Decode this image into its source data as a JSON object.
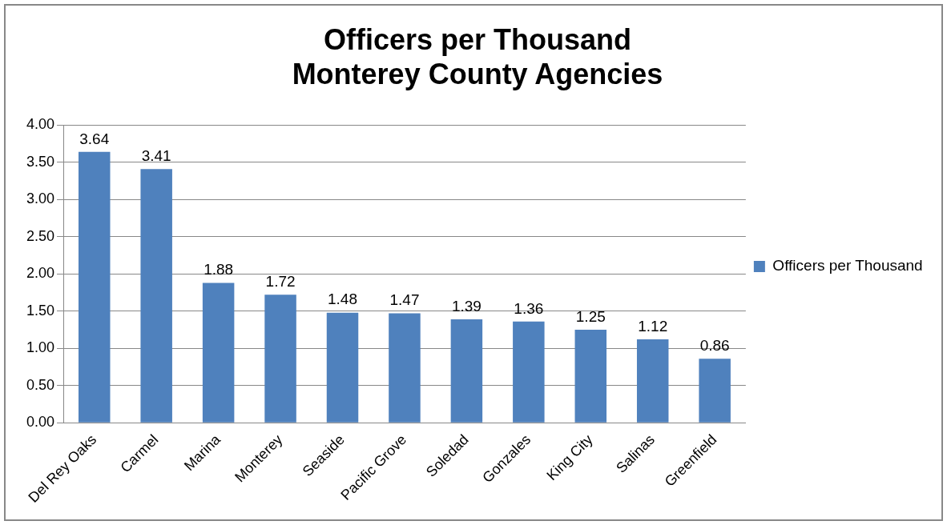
{
  "chart_data": {
    "type": "bar",
    "title": "Officers per Thousand\nMonterey County Agencies",
    "categories": [
      "Del Rey Oaks",
      "Carmel",
      "Marina",
      "Monterey",
      "Seaside",
      "Pacific Grove",
      "Soledad",
      "Gonzales",
      "King City",
      "Salinas",
      "Greenfield"
    ],
    "series": [
      {
        "name": "Officers per Thousand",
        "color": "#4f81bd",
        "values": [
          3.64,
          3.41,
          1.88,
          1.72,
          1.48,
          1.47,
          1.39,
          1.36,
          1.25,
          1.12,
          0.86
        ]
      }
    ],
    "ylim": [
      0,
      4
    ],
    "yticks": [
      {
        "value": 0,
        "label": "0.00"
      },
      {
        "value": 0.5,
        "label": "0.50"
      },
      {
        "value": 1,
        "label": "1.00"
      },
      {
        "value": 1.5,
        "label": "1.50"
      },
      {
        "value": 2,
        "label": "2.00"
      },
      {
        "value": 2.5,
        "label": "2.50"
      },
      {
        "value": 3,
        "label": "3.00"
      },
      {
        "value": 3.5,
        "label": "3.50"
      },
      {
        "value": 4,
        "label": "4.00"
      }
    ],
    "grid": "y",
    "legend": "right",
    "data_labels": true
  }
}
